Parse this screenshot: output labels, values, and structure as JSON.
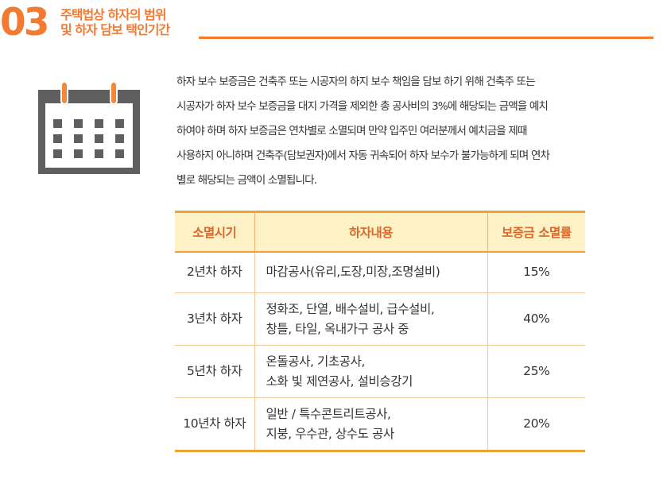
{
  "header": {
    "number": "03",
    "title_lines": [
      "주택법상 하자의 범위",
      "및 하자 담보 택인기간"
    ]
  },
  "colors": {
    "accent": "#f47a32",
    "table_border": "#f0a23a",
    "table_header_bg": "#fdf1c6",
    "icon_ring": "#f2883a",
    "icon_body": "#5f5f5f"
  },
  "icon": {
    "name": "calendar-icon"
  },
  "intro_lines": [
    "하자 보수 보증금은 건축주 또는 시공자의 하지 보수 책임을 담보 하기 위해 건축주 또는",
    "시공자가 하자 보수 보증금을 대지 가격을 제외한 총 공사비의 3%에 해당되는 금액을 예치",
    "하여야 하며 하자 보증금은 연차별로 소멸되며 만약 입주민 여러분께서 예치금을 제때",
    "사용하지 아니하며 건축주(담보권자)에서 자동 귀속되어 하자 보수가 불가능하게 되며 연차",
    "별로 해당되는 금액이 소멸됩니다."
  ],
  "table": {
    "headers": [
      "소멸시기",
      "하자내용",
      "보증금 소멸률"
    ],
    "rows": [
      {
        "period": "2년차 하자",
        "content": [
          "마감공사(유리,도장,미장,조명설비)"
        ],
        "rate": "15%"
      },
      {
        "period": "3년차 하자",
        "content": [
          "정화조, 단열, 배수설비, 급수설비,",
          "창틀, 타일, 옥내가구 공사 중"
        ],
        "rate": "40%"
      },
      {
        "period": "5년차 하자",
        "content": [
          "온돌공사, 기초공사,",
          "소화 빛 제연공사, 설비승강기"
        ],
        "rate": "25%"
      },
      {
        "period": "10년차 하자",
        "content": [
          "일반 / 특수콘트리트공사,",
          "지붕, 우수관, 상수도 공사"
        ],
        "rate": "20%"
      }
    ]
  }
}
